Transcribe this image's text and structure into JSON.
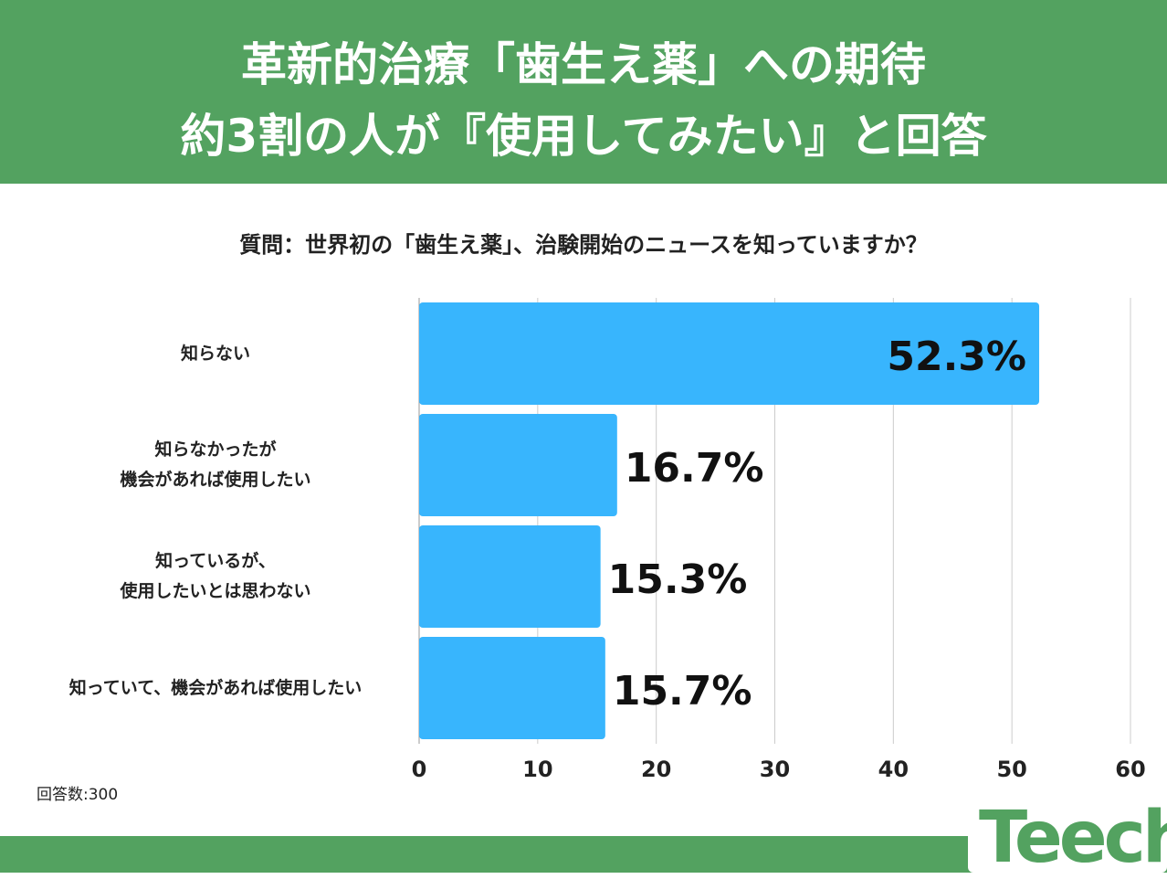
{
  "header": {
    "line1": "革新的治療「歯生え薬」への期待",
    "line2": "約3割の人が『使用してみたい』と回答"
  },
  "note": "回答数:300",
  "logo": "Teech",
  "colors": {
    "header": "#53a260",
    "bar": "#38b5fd"
  },
  "chart_data": {
    "type": "bar",
    "orientation": "horizontal",
    "title": "質問：世界初の「歯生え薬」、治験開始のニュースを知っていますか？",
    "categories": [
      "知らない",
      "知らなかったが\n機会があれば使用したい",
      "知っているが、\n使用したいとは思わない",
      "知っていて、機会があれば使用したい"
    ],
    "values": [
      52.3,
      16.7,
      15.3,
      15.7
    ],
    "labels": [
      "52.3%",
      "16.7%",
      "15.3%",
      "15.7%"
    ],
    "xlim": [
      0,
      60
    ],
    "xticks": [
      "0",
      "10",
      "20",
      "30",
      "40",
      "50",
      "60"
    ],
    "grid": true
  }
}
